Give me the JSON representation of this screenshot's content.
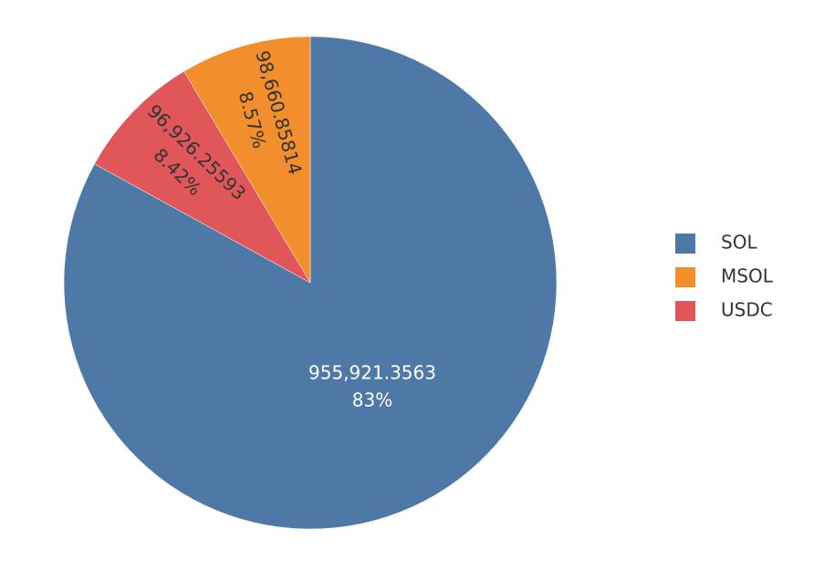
{
  "chart_data": {
    "type": "pie",
    "categories": [
      "SOL",
      "MSOL",
      "USDC"
    ],
    "values": [
      955921.3563,
      98660.85814,
      96926.25593
    ],
    "value_labels": [
      "955,921.3563",
      "98,660.85814",
      "96,926.25593"
    ],
    "percents": [
      83,
      8.57,
      8.42
    ],
    "percent_labels": [
      "83%",
      "8.57%",
      "8.42%"
    ],
    "colors": [
      "#4e79a7",
      "#f28e2b",
      "#e15759"
    ],
    "legend": "right"
  }
}
